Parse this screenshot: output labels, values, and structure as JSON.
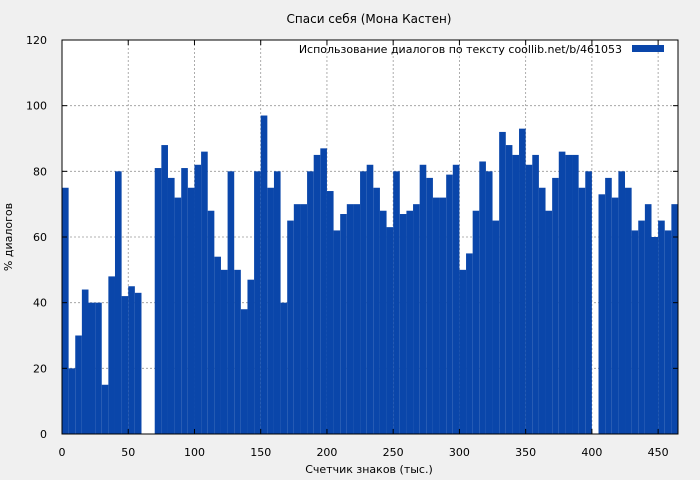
{
  "chart_data": {
    "type": "bar",
    "title": "Спаси себя (Мона Кастен)",
    "xlabel": "Счетчик знаков (тыс.)",
    "ylabel": "% диалогов",
    "xlim": [
      0,
      465
    ],
    "ylim": [
      0,
      120
    ],
    "x_ticks": [
      "0",
      "50",
      "100",
      "150",
      "200",
      "250",
      "300",
      "350",
      "400",
      "450"
    ],
    "y_ticks": [
      "0",
      "20",
      "40",
      "60",
      "80",
      "100",
      "120"
    ],
    "grid": true,
    "legend_position": "top-right",
    "bar_color": "#0a46aa",
    "series": [
      {
        "name": "Использование диалогов по тексту  coollib.net/b/461053",
        "bin_width": 5,
        "x": [
          2.5,
          7.5,
          12.5,
          17.5,
          22.5,
          27.5,
          32.5,
          37.5,
          42.5,
          47.5,
          52.5,
          57.5,
          62.5,
          67.5,
          72.5,
          77.5,
          82.5,
          87.5,
          92.5,
          97.5,
          102.5,
          107.5,
          112.5,
          117.5,
          122.5,
          127.5,
          132.5,
          137.5,
          142.5,
          147.5,
          152.5,
          157.5,
          162.5,
          167.5,
          172.5,
          177.5,
          182.5,
          187.5,
          192.5,
          197.5,
          202.5,
          207.5,
          212.5,
          217.5,
          222.5,
          227.5,
          232.5,
          237.5,
          242.5,
          247.5,
          252.5,
          257.5,
          262.5,
          267.5,
          272.5,
          277.5,
          282.5,
          287.5,
          292.5,
          297.5,
          302.5,
          307.5,
          312.5,
          317.5,
          322.5,
          327.5,
          332.5,
          337.5,
          342.5,
          347.5,
          352.5,
          357.5,
          362.5,
          367.5,
          372.5,
          377.5,
          382.5,
          387.5,
          392.5,
          397.5,
          402.5,
          407.5,
          412.5,
          417.5,
          422.5,
          427.5,
          432.5,
          437.5,
          442.5,
          447.5,
          452.5,
          457.5,
          462.5
        ],
        "values": [
          75,
          20,
          30,
          44,
          40,
          40,
          15,
          48,
          80,
          42,
          45,
          43,
          0,
          0,
          81,
          88,
          78,
          72,
          81,
          75,
          82,
          86,
          68,
          54,
          50,
          80,
          50,
          38,
          47,
          80,
          97,
          75,
          80,
          40,
          65,
          70,
          70,
          80,
          85,
          87,
          74,
          62,
          67,
          70,
          70,
          80,
          82,
          75,
          68,
          63,
          80,
          67,
          68,
          70,
          82,
          78,
          72,
          72,
          79,
          82,
          50,
          55,
          68,
          83,
          80,
          65,
          92,
          88,
          85,
          93,
          82,
          85,
          75,
          68,
          78,
          86,
          85,
          85,
          75,
          80,
          0,
          73,
          78,
          72,
          80,
          75,
          62,
          65,
          70,
          60,
          65,
          62,
          70
        ]
      }
    ]
  }
}
